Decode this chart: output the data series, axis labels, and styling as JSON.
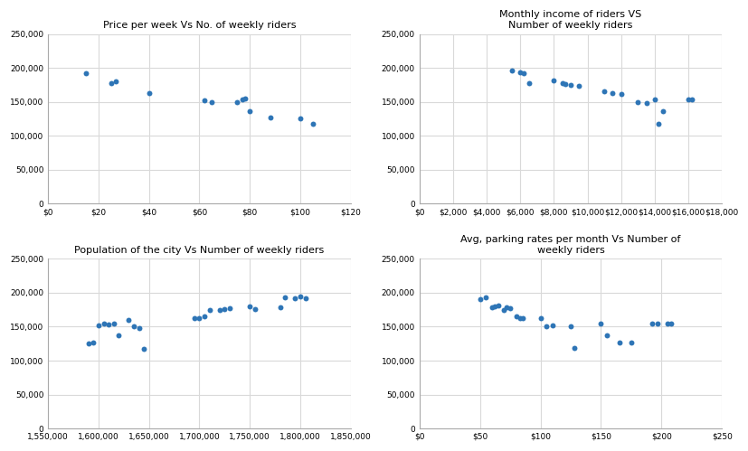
{
  "plot1": {
    "title": "Price per week Vs No. of weekly riders",
    "x": [
      15,
      25,
      27,
      40,
      62,
      65,
      75,
      77,
      78,
      80,
      88,
      100,
      105
    ],
    "y": [
      192000,
      178000,
      180000,
      163000,
      152000,
      150000,
      150000,
      153000,
      155000,
      136000,
      127000,
      125000,
      118000
    ],
    "xlim": [
      0,
      120
    ],
    "ylim": [
      0,
      250000
    ],
    "xticks": [
      0,
      20,
      40,
      60,
      80,
      100,
      120
    ],
    "xlabels": [
      "$0",
      "$20",
      "$40",
      "$60",
      "$80",
      "$100",
      "$120"
    ]
  },
  "plot2": {
    "title": "Monthly income of riders VS\nNumber of weekly riders",
    "x": [
      5500,
      6000,
      6200,
      6500,
      8000,
      8500,
      8700,
      9000,
      9500,
      11000,
      11500,
      12000,
      13000,
      13500,
      14000,
      14200,
      14500,
      16000,
      16200
    ],
    "y": [
      196000,
      193000,
      192000,
      178000,
      181000,
      177000,
      176000,
      175000,
      174000,
      165000,
      163000,
      162000,
      150000,
      148000,
      154000,
      118000,
      136000,
      153000,
      154000
    ],
    "xlim": [
      0,
      18000
    ],
    "ylim": [
      0,
      250000
    ],
    "xticks": [
      0,
      2000,
      4000,
      6000,
      8000,
      10000,
      12000,
      14000,
      16000,
      18000
    ],
    "xlabels": [
      "$0",
      "$2,000",
      "$4,000",
      "$6,000",
      "$8,000",
      "$10,000",
      "$12,000",
      "$14,000",
      "$16,000",
      "$18,000"
    ]
  },
  "plot3": {
    "title": "Population of the city Vs Number of weekly riders",
    "x": [
      1590000,
      1595000,
      1600000,
      1605000,
      1610000,
      1615000,
      1620000,
      1630000,
      1635000,
      1640000,
      1645000,
      1695000,
      1700000,
      1705000,
      1710000,
      1720000,
      1725000,
      1730000,
      1750000,
      1755000,
      1780000,
      1785000,
      1795000,
      1800000,
      1805000
    ],
    "y": [
      125000,
      127000,
      152000,
      154000,
      153000,
      155000,
      137000,
      160000,
      150000,
      148000,
      117000,
      162000,
      163000,
      165000,
      174000,
      175000,
      176000,
      177000,
      180000,
      176000,
      178000,
      193000,
      192000,
      194000,
      192000
    ],
    "xlim": [
      1550000,
      1850000
    ],
    "ylim": [
      0,
      250000
    ],
    "xticks": [
      1550000,
      1600000,
      1650000,
      1700000,
      1750000,
      1800000,
      1850000
    ],
    "xlabels": [
      "1,550,000",
      "1,600,000",
      "1,650,000",
      "1,700,000",
      "1,750,000",
      "1,800,000",
      "1,850,000"
    ]
  },
  "plot4": {
    "title": "Avg, parking rates per month Vs Number of\nweekly riders",
    "x": [
      50,
      55,
      60,
      62,
      65,
      70,
      72,
      75,
      80,
      83,
      85,
      100,
      105,
      110,
      125,
      128,
      150,
      155,
      165,
      175,
      192,
      197,
      205,
      208
    ],
    "y": [
      191000,
      193000,
      178000,
      180000,
      181000,
      175000,
      178000,
      177000,
      165000,
      163000,
      162000,
      163000,
      151000,
      152000,
      150000,
      118000,
      154000,
      137000,
      127000,
      127000,
      154000,
      155000,
      154000,
      155000
    ],
    "xlim": [
      0,
      250
    ],
    "ylim": [
      0,
      250000
    ],
    "xticks": [
      0,
      50,
      100,
      150,
      200,
      250
    ],
    "xlabels": [
      "$0",
      "$50",
      "$100",
      "$150",
      "$200",
      "$250"
    ]
  },
  "dot_color": "#2e75b6",
  "dot_size": 18,
  "bg_color": "#ffffff",
  "grid_color": "#d9d9d9",
  "yticks": [
    0,
    50000,
    100000,
    150000,
    200000,
    250000
  ],
  "ylabels": [
    "0",
    "50,000",
    "100,000",
    "150,000",
    "200,000",
    "250,000"
  ]
}
